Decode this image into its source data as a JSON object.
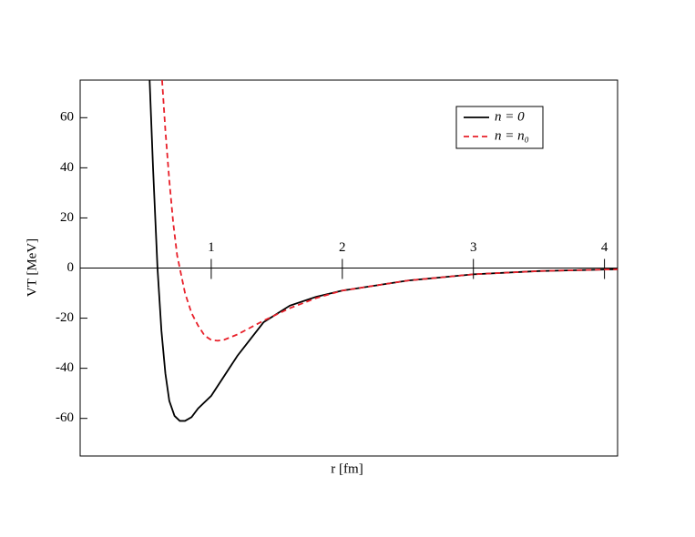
{
  "chart_data": {
    "type": "line",
    "x_label": "r  [fm]",
    "y_label": "VT  [MeV]",
    "xlim": [
      0,
      4.1
    ],
    "xticks": [
      1,
      2,
      3,
      4
    ],
    "ylim": [
      -75,
      75
    ],
    "yticks": [
      -60,
      -40,
      -20,
      0,
      20,
      40,
      60
    ],
    "legend": "upper right",
    "series": [
      {
        "name": "n = 0",
        "color": "#000000",
        "dash": false,
        "x": [
          0.53,
          0.556,
          0.59,
          0.62,
          0.65,
          0.68,
          0.72,
          0.76,
          0.8,
          0.85,
          0.9,
          1.0,
          1.2,
          1.4,
          1.6,
          1.8,
          2.0,
          2.5,
          3.0,
          3.5,
          4.0,
          4.1
        ],
        "values": [
          75,
          40,
          0,
          -25,
          -42,
          -53,
          -59,
          -61,
          -61,
          -59.5,
          -56,
          -51,
          -35,
          -21.6,
          -15,
          -11.5,
          -9,
          -5,
          -2.5,
          -1.2,
          -0.6,
          -0.5
        ]
      },
      {
        "name": "n = n₀",
        "color": "#e8202a",
        "dash": true,
        "x": [
          0.625,
          0.65,
          0.68,
          0.71,
          0.74,
          0.76,
          0.8,
          0.85,
          0.9,
          0.95,
          1.0,
          1.05,
          1.1,
          1.2,
          1.4,
          1.6,
          1.8,
          2.0,
          2.5,
          3.0,
          3.5,
          4.0,
          4.1
        ],
        "values": [
          75,
          55,
          35,
          18,
          5,
          0,
          -10,
          -18,
          -23,
          -27,
          -28.7,
          -29,
          -28.6,
          -26.5,
          -21,
          -16,
          -12,
          -9,
          -5,
          -2.5,
          -1.2,
          -0.6,
          -0.5
        ]
      }
    ]
  }
}
